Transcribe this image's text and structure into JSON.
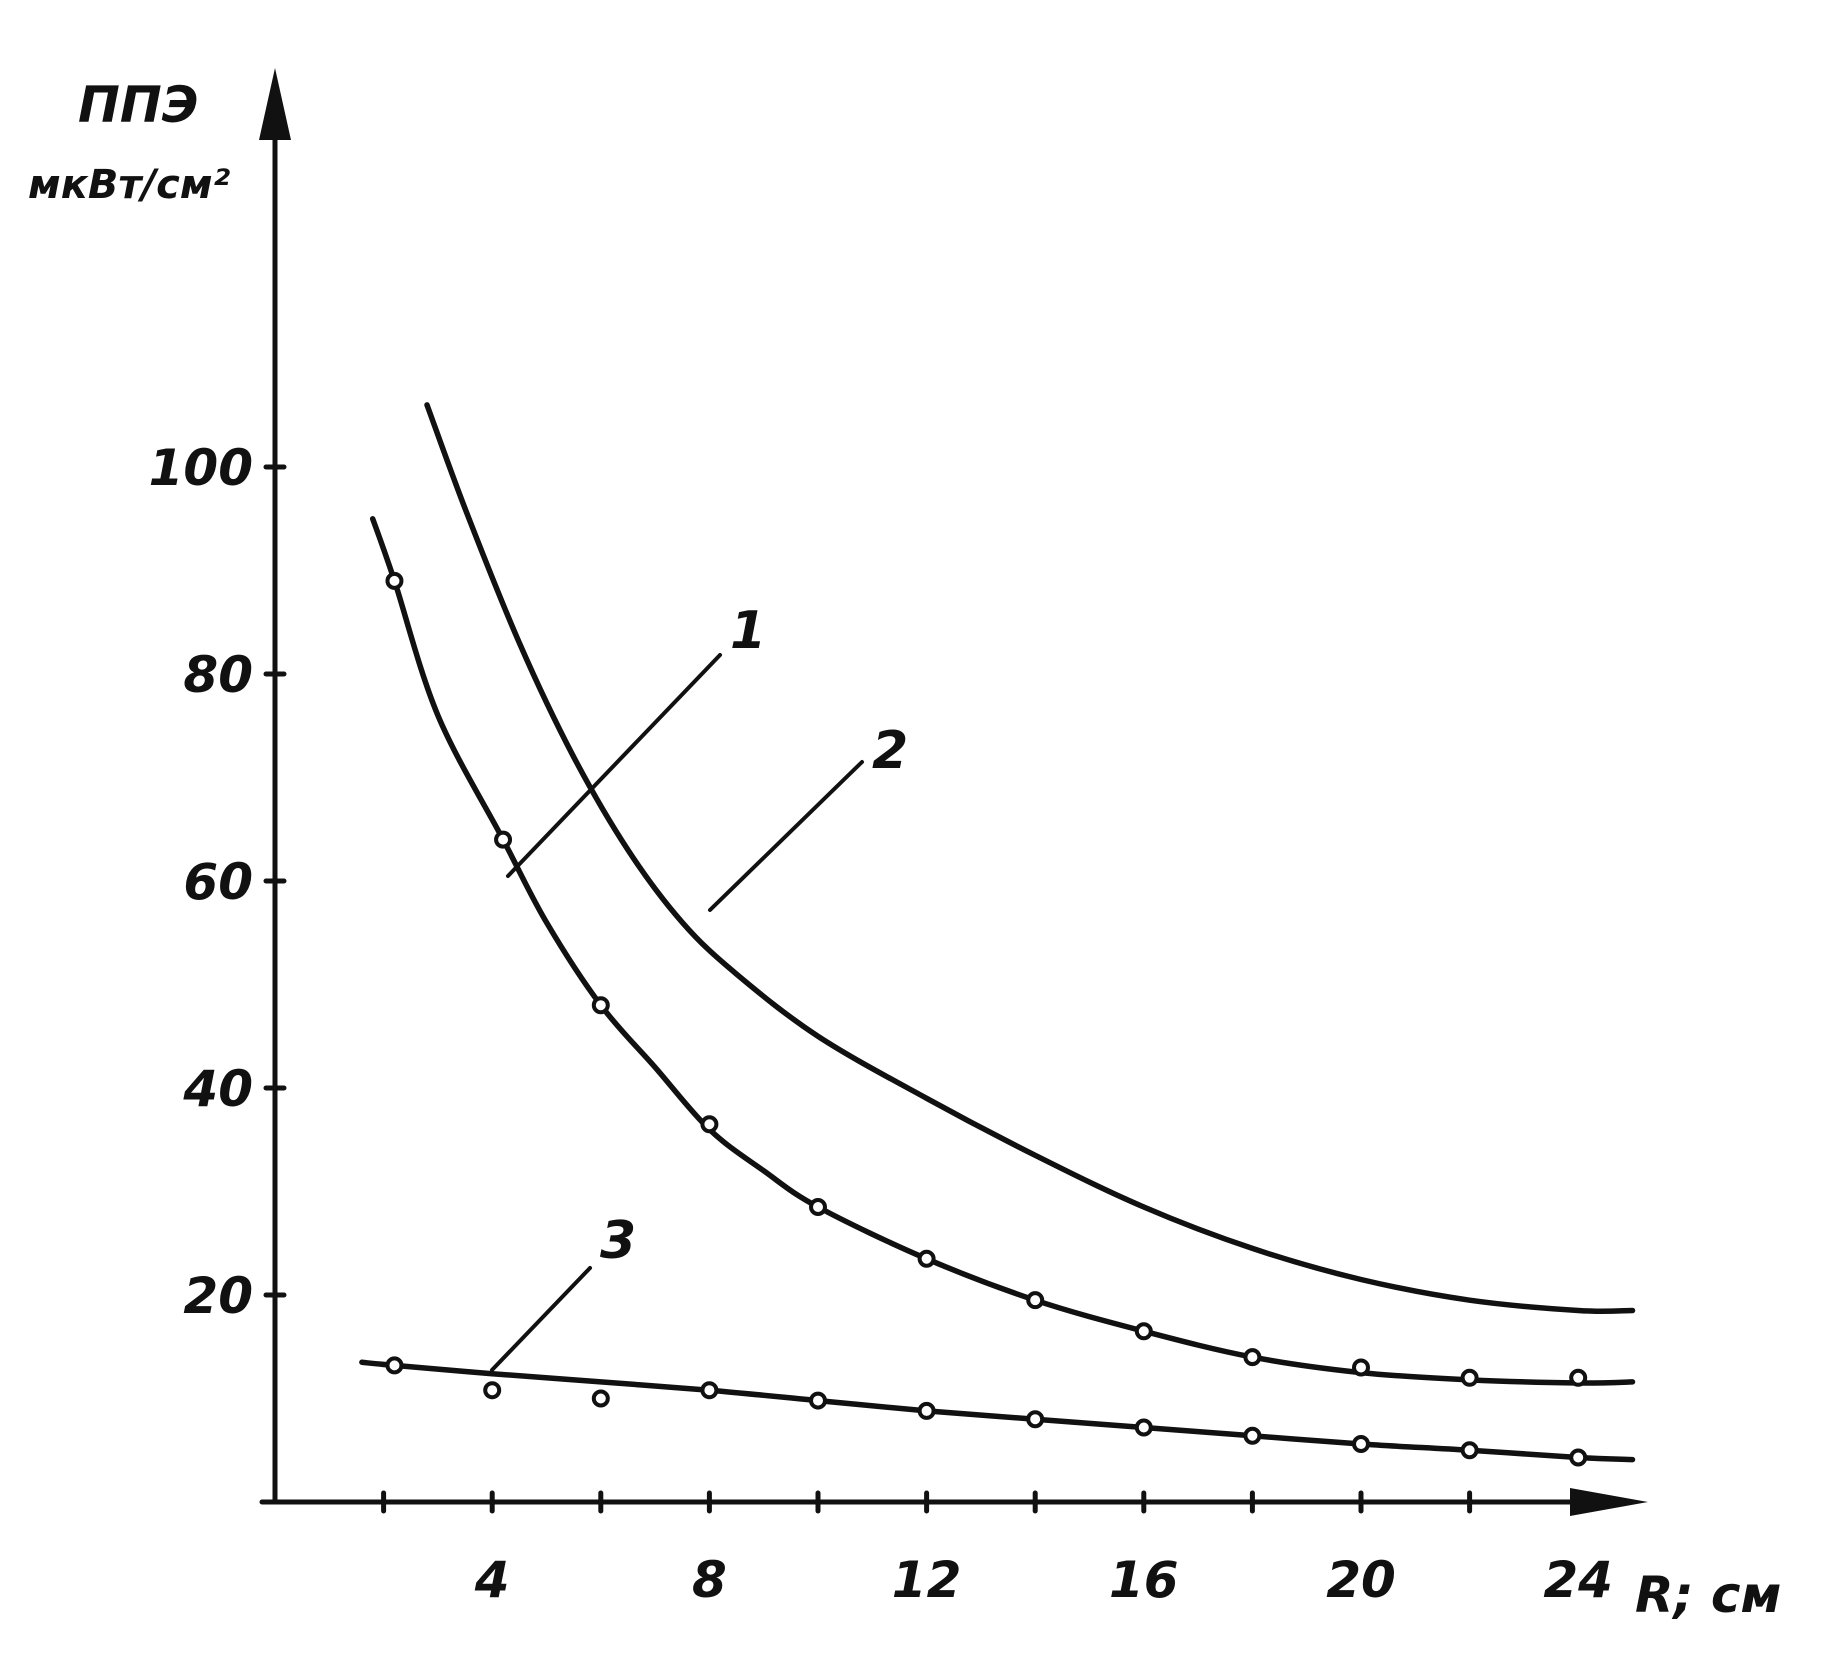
{
  "chart_data": {
    "type": "line",
    "ylabel": "ППЭ",
    "yunit": "мкВт/см²",
    "xlabel": "R; см",
    "xlim": [
      0,
      26
    ],
    "ylim": [
      0,
      118
    ],
    "xticks": [
      2,
      4,
      6,
      8,
      10,
      12,
      14,
      16,
      18,
      20,
      22,
      24
    ],
    "xtick_labels": [
      "4",
      "8",
      "12",
      "16",
      "20",
      "24"
    ],
    "xtick_label_values": [
      4,
      8,
      12,
      16,
      20,
      24
    ],
    "yticks": [
      20,
      40,
      60,
      80,
      100
    ],
    "ytick_labels": [
      "20",
      "40",
      "60",
      "80",
      "100"
    ],
    "grid": false,
    "series": [
      {
        "name": "1",
        "line": [
          [
            1.8,
            95
          ],
          [
            2.2,
            89
          ],
          [
            3,
            76
          ],
          [
            4.2,
            64
          ],
          [
            5,
            56
          ],
          [
            6,
            48
          ],
          [
            7,
            42
          ],
          [
            8,
            36
          ],
          [
            9,
            32
          ],
          [
            10,
            28.5
          ],
          [
            12,
            23.5
          ],
          [
            14,
            19.5
          ],
          [
            16,
            16.5
          ],
          [
            18,
            14
          ],
          [
            20,
            12.5
          ],
          [
            22,
            11.8
          ],
          [
            24,
            11.5
          ],
          [
            25,
            11.6
          ]
        ],
        "points": [
          [
            2.2,
            89
          ],
          [
            4.2,
            64
          ],
          [
            6,
            48
          ],
          [
            8,
            36.5
          ],
          [
            10,
            28.5
          ],
          [
            12,
            23.5
          ],
          [
            14,
            19.5
          ],
          [
            16,
            16.5
          ],
          [
            18,
            14
          ],
          [
            20,
            13
          ],
          [
            22,
            12
          ],
          [
            24,
            12
          ]
        ]
      },
      {
        "name": "2",
        "line": [
          [
            2.8,
            106
          ],
          [
            3.5,
            96
          ],
          [
            4.5,
            83
          ],
          [
            5.5,
            72
          ],
          [
            6.5,
            63
          ],
          [
            7.5,
            56
          ],
          [
            8.5,
            51
          ],
          [
            10,
            45
          ],
          [
            12,
            39
          ],
          [
            14,
            33.5
          ],
          [
            16,
            28.5
          ],
          [
            18,
            24.5
          ],
          [
            20,
            21.5
          ],
          [
            22,
            19.5
          ],
          [
            24,
            18.5
          ],
          [
            25,
            18.5
          ]
        ],
        "points": []
      },
      {
        "name": "3",
        "line": [
          [
            1.6,
            13.5
          ],
          [
            2.2,
            13.2
          ],
          [
            4,
            12.4
          ],
          [
            6,
            11.6
          ],
          [
            8,
            10.8
          ],
          [
            10,
            9.8
          ],
          [
            12,
            8.8
          ],
          [
            14,
            8
          ],
          [
            16,
            7.2
          ],
          [
            18,
            6.4
          ],
          [
            20,
            5.6
          ],
          [
            22,
            5
          ],
          [
            24,
            4.3
          ],
          [
            25,
            4.1
          ]
        ],
        "points": [
          [
            2.2,
            13.2
          ],
          [
            4,
            10.8
          ],
          [
            6,
            10
          ],
          [
            8,
            10.8
          ],
          [
            10,
            9.8
          ],
          [
            12,
            8.8
          ],
          [
            14,
            8
          ],
          [
            16,
            7.2
          ],
          [
            18,
            6.4
          ],
          [
            20,
            5.6
          ],
          [
            22,
            5
          ],
          [
            24,
            4.3
          ]
        ]
      }
    ]
  }
}
